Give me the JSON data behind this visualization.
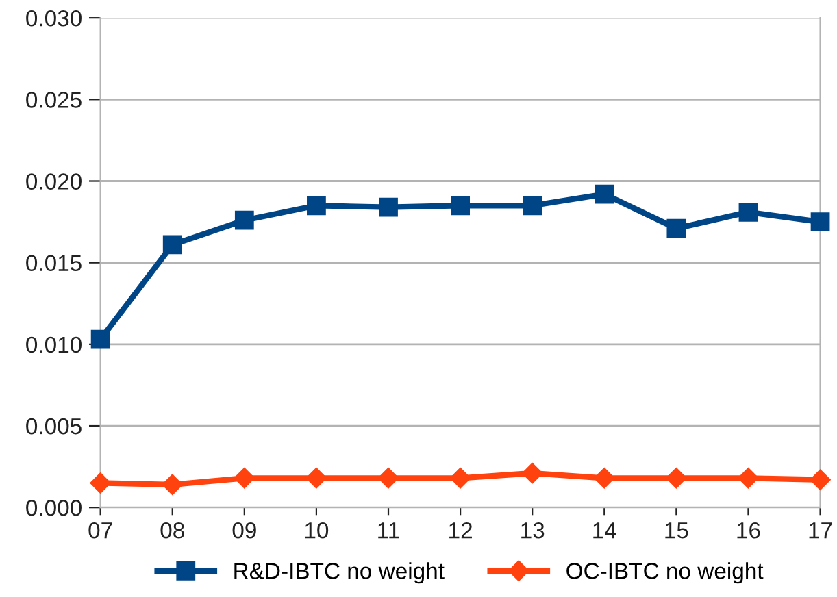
{
  "chart_data": {
    "type": "line",
    "categories": [
      "07",
      "08",
      "09",
      "10",
      "11",
      "12",
      "13",
      "14",
      "15",
      "16",
      "17"
    ],
    "series": [
      {
        "name": "R&D-IBTC no weight",
        "color": "#004586",
        "marker": "square",
        "values": [
          0.0103,
          0.0161,
          0.0176,
          0.0185,
          0.0184,
          0.0185,
          0.0185,
          0.0192,
          0.0171,
          0.0181,
          0.0175
        ]
      },
      {
        "name": "OC-IBTC no weight",
        "color": "#ff420e",
        "marker": "diamond",
        "values": [
          0.0015,
          0.0014,
          0.0018,
          0.0018,
          0.0018,
          0.0018,
          0.0021,
          0.0018,
          0.0018,
          0.0018,
          0.0017
        ]
      }
    ],
    "ylim": [
      0,
      0.03
    ],
    "yticks": [
      {
        "value": 0,
        "label": "0.000"
      },
      {
        "value": 0.005,
        "label": "0.005"
      },
      {
        "value": 0.01,
        "label": "0.010"
      },
      {
        "value": 0.015,
        "label": "0.015"
      },
      {
        "value": 0.02,
        "label": "0.020"
      },
      {
        "value": 0.025,
        "label": "0.025"
      },
      {
        "value": 0.03,
        "label": "0.030"
      }
    ],
    "grid": "y",
    "legend": "bottom",
    "line_style": "solid"
  }
}
